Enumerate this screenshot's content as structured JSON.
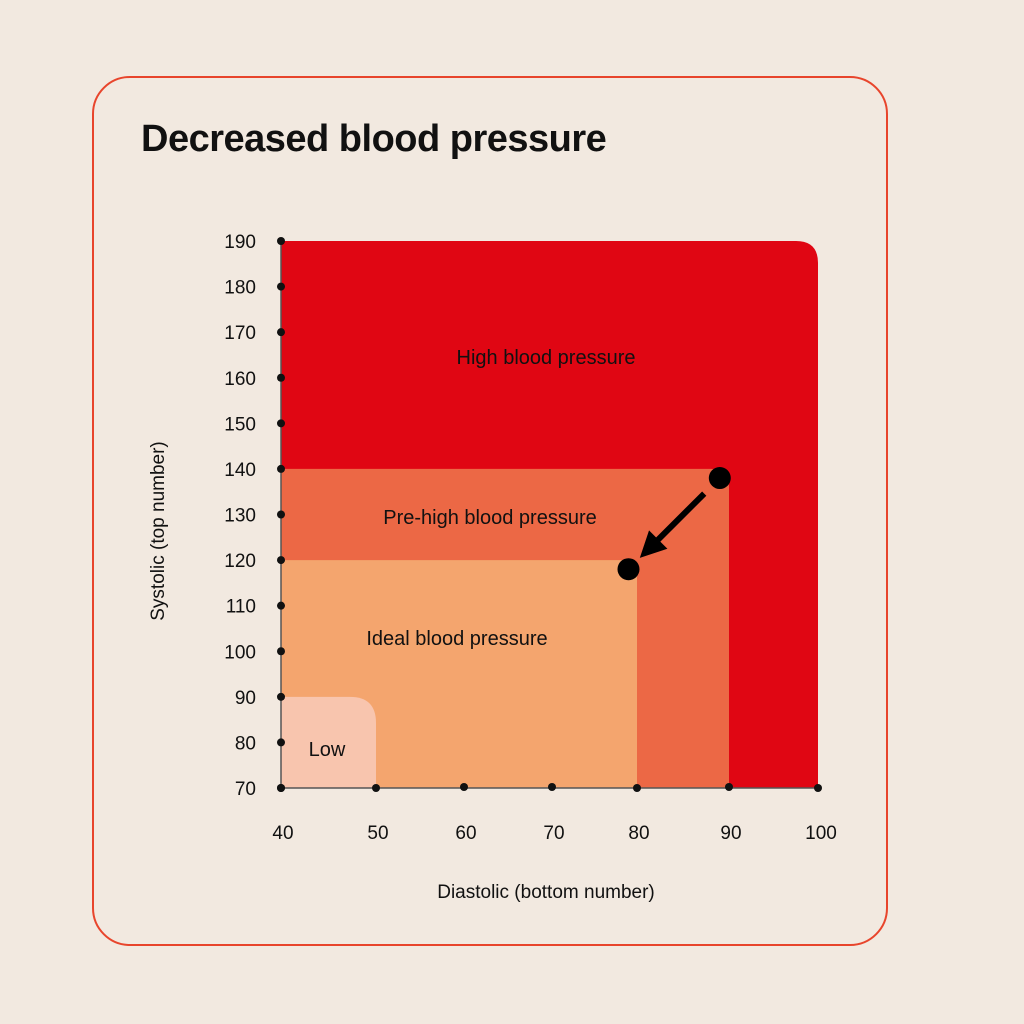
{
  "chart_data": {
    "type": "area",
    "title": "Decreased blood pressure",
    "xlabel": "Diastolic (bottom number)",
    "ylabel": "Systolic (top number)",
    "xlim": [
      40,
      100
    ],
    "ylim": [
      70,
      190
    ],
    "x_ticks": [
      40,
      50,
      60,
      70,
      80,
      90,
      100
    ],
    "y_ticks": [
      70,
      80,
      90,
      100,
      110,
      120,
      130,
      140,
      150,
      160,
      170,
      180,
      190
    ],
    "zones": [
      {
        "name": "High blood pressure",
        "x_max": 100,
        "y_max": 190,
        "color": "#e00613"
      },
      {
        "name": "Pre-high blood pressure",
        "x_max": 90,
        "y_max": 140,
        "color": "#ec6845"
      },
      {
        "name": "Ideal blood pressure",
        "x_max": 80,
        "y_max": 120,
        "color": "#f4a56e"
      },
      {
        "name": "Low",
        "x_max": 50,
        "y_max": 90,
        "color": "#f8c5ae"
      }
    ],
    "points": [
      {
        "label": "start",
        "x": 89,
        "y": 138
      },
      {
        "label": "end",
        "x": 79,
        "y": 118
      }
    ],
    "arrow": {
      "from": "start",
      "to": "end"
    },
    "grid": false
  },
  "card": {
    "border_color": "#e8452c",
    "background": "#f2e9e0"
  }
}
